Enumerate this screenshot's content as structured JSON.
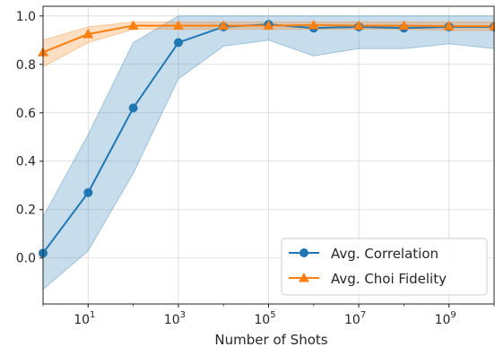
{
  "chart_data": {
    "type": "line",
    "xlabel": "Number of Shots",
    "ylabel": "",
    "title": "",
    "x_scale": "log",
    "xlim": [
      1,
      10000000000.0
    ],
    "ylim": [
      -0.19,
      1.04
    ],
    "x_ticks": [
      {
        "value": 10,
        "base": "10",
        "exp": "1"
      },
      {
        "value": 1000,
        "base": "10",
        "exp": "3"
      },
      {
        "value": 100000,
        "base": "10",
        "exp": "5"
      },
      {
        "value": 10000000,
        "base": "10",
        "exp": "7"
      },
      {
        "value": 1000000000,
        "base": "10",
        "exp": "9"
      }
    ],
    "y_ticks": [
      "0.0",
      "0.2",
      "0.4",
      "0.6",
      "0.8",
      "1.0"
    ],
    "grid": true,
    "legend_position": "bottom-right",
    "x": [
      1,
      10,
      100,
      1000,
      10000,
      100000,
      1000000,
      10000000,
      100000000,
      1000000000,
      10000000000
    ],
    "series": [
      {
        "name": "Avg. Correlation",
        "color": "#1f77b4",
        "marker": "circle",
        "values": [
          0.02,
          0.27,
          0.62,
          0.89,
          0.955,
          0.965,
          0.95,
          0.955,
          0.95,
          0.955,
          0.955
        ],
        "lower": [
          -0.13,
          0.03,
          0.35,
          0.74,
          0.875,
          0.9,
          0.835,
          0.865,
          0.865,
          0.885,
          0.865
        ],
        "upper": [
          0.17,
          0.51,
          0.89,
          1.0,
          1.0,
          1.0,
          1.0,
          1.0,
          1.0,
          1.0,
          1.0
        ]
      },
      {
        "name": "Avg. Choi Fidelity",
        "color": "#ff7f0e",
        "marker": "triangle",
        "values": [
          0.85,
          0.925,
          0.96,
          0.96,
          0.96,
          0.96,
          0.962,
          0.96,
          0.96,
          0.958,
          0.958
        ],
        "lower": [
          0.79,
          0.89,
          0.945,
          0.945,
          0.945,
          0.945,
          0.945,
          0.945,
          0.945,
          0.94,
          0.94
        ],
        "upper": [
          0.9,
          0.955,
          0.975,
          0.975,
          0.975,
          0.975,
          0.975,
          0.975,
          0.975,
          0.975,
          0.975
        ]
      }
    ]
  }
}
